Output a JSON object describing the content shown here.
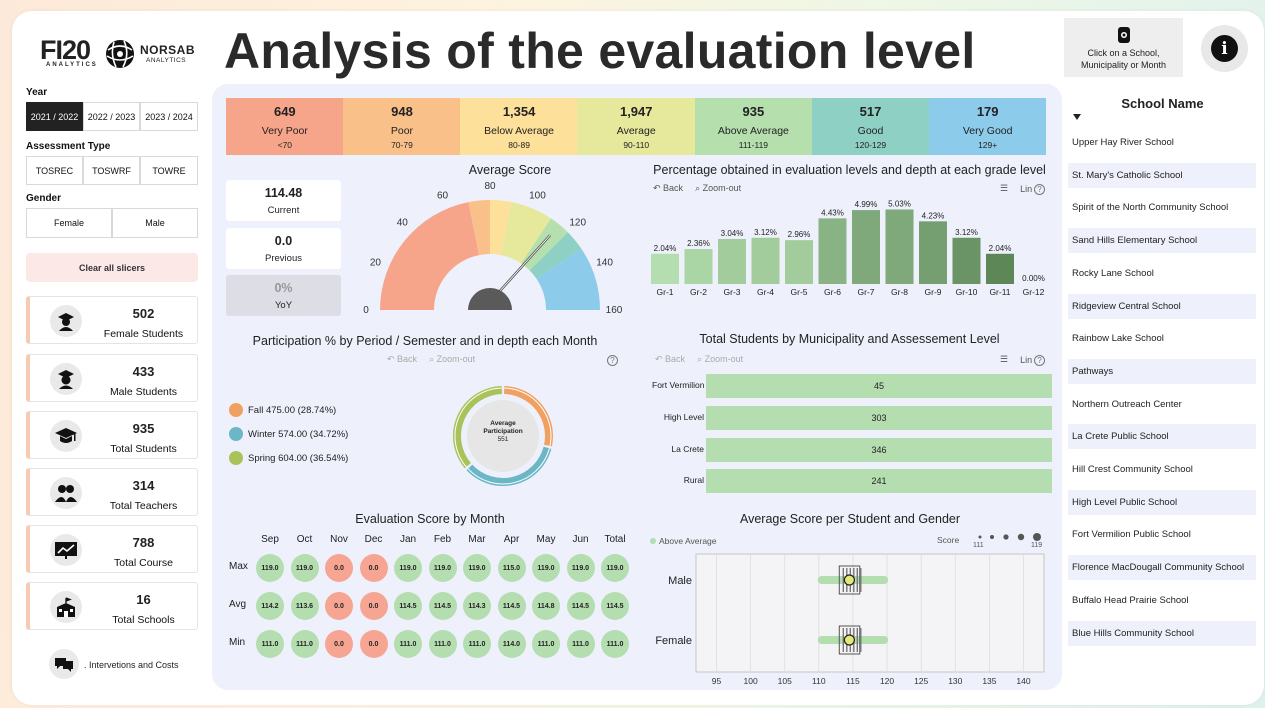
{
  "title": "Analysis of the evaluation level",
  "logos": {
    "fi20_main": "FI20",
    "fi20_sub": "ANALYTICS",
    "norsab_main": "NORSAB",
    "norsab_sub": "ANALYTICS"
  },
  "school_card": {
    "line1": "Click on a School,",
    "line2": "Municipality or Month",
    "icon": "hand-pointer-icon"
  },
  "info_icon": "i",
  "filters": {
    "year": {
      "label": "Year",
      "options": [
        "2021 / 2022",
        "2022 / 2023",
        "2023 / 2024"
      ],
      "selected": "2021 / 2022"
    },
    "assessment_type": {
      "label": "Assessment Type",
      "options": [
        "TOSREC",
        "TOSWRF",
        "TOWRE"
      ]
    },
    "gender": {
      "label": "Gender",
      "options": [
        "Female",
        "Male"
      ]
    },
    "clear": "Clear all slicers"
  },
  "kpis": [
    {
      "value": "502",
      "label": "Female Students",
      "icon": "female-student-icon"
    },
    {
      "value": "433",
      "label": "Male Students",
      "icon": "male-student-icon"
    },
    {
      "value": "935",
      "label": "Total Students",
      "icon": "graduation-cap-icon"
    },
    {
      "value": "314",
      "label": "Total Teachers",
      "icon": "teachers-icon"
    },
    {
      "value": "788",
      "label": "Total Course",
      "icon": "chart-board-icon"
    },
    {
      "value": "16",
      "label": "Total Schools",
      "icon": "school-building-icon"
    }
  ],
  "interventions": {
    "label": ". Intervetions and Costs",
    "icon": "chat-costs-icon"
  },
  "levels": [
    {
      "count": "649",
      "name": "Very Poor",
      "range": "<70",
      "color": "#f7a58a"
    },
    {
      "count": "948",
      "name": "Poor",
      "range": "70-79",
      "color": "#fac08a"
    },
    {
      "count": "1,354",
      "name": "Below Average",
      "range": "80-89",
      "color": "#fde09a"
    },
    {
      "count": "1,947",
      "name": "Average",
      "range": "90-110",
      "color": "#e6e89b"
    },
    {
      "count": "935",
      "name": "Above Average",
      "range": "111-119",
      "color": "#b6dfae"
    },
    {
      "count": "517",
      "name": "Good",
      "range": "120-129",
      "color": "#8fd0c4"
    },
    {
      "count": "179",
      "name": "Very Good",
      "range": "129+",
      "color": "#8ccbea"
    }
  ],
  "average_score": {
    "title": "Average Score",
    "cards": [
      {
        "value": "114.48",
        "label": "Current"
      },
      {
        "value": "0.0",
        "label": "Previous"
      },
      {
        "value": "0%",
        "label": "YoY"
      }
    ],
    "gauge": {
      "min": 0,
      "max": 160,
      "value": 114.48,
      "ticks": [
        "0",
        "20",
        "40",
        "60",
        "80",
        "100",
        "120",
        "140",
        "160"
      ],
      "bands": [
        [
          0,
          70,
          "#f7a58a"
        ],
        [
          70,
          80,
          "#fac08a"
        ],
        [
          80,
          90,
          "#fde09a"
        ],
        [
          90,
          110,
          "#e6e89b"
        ],
        [
          110,
          120,
          "#b6dfae"
        ],
        [
          120,
          130,
          "#8fd0c4"
        ],
        [
          130,
          160,
          "#8ccbea"
        ]
      ]
    }
  },
  "grade_chart": {
    "title": "Percentage obtained in evaluation levels and depth at each grade level",
    "toolbar": {
      "back": "Back",
      "zoom": "Zoom-out",
      "lin": "Lin"
    },
    "chart_data": {
      "type": "bar",
      "categories": [
        "Gr-1",
        "Gr-2",
        "Gr-3",
        "Gr-4",
        "Gr-5",
        "Gr-6",
        "Gr-7",
        "Gr-8",
        "Gr-9",
        "Gr-10",
        "Gr-11",
        "Gr-12"
      ],
      "values": [
        2.04,
        2.36,
        3.04,
        3.12,
        2.96,
        4.43,
        4.99,
        5.03,
        4.23,
        3.12,
        2.04,
        0.0
      ],
      "labels": [
        "2.04%",
        "2.36%",
        "3.04%",
        "3.12%",
        "2.96%",
        "4.43%",
        "4.99%",
        "5.03%",
        "4.23%",
        "3.12%",
        "2.04%",
        "0.00%"
      ],
      "colors": [
        "#b4ddb0",
        "#aad5a4",
        "#a2cc9b",
        "#a2cc9b",
        "#a2cc9b",
        "#89b385",
        "#7fa87b",
        "#7fa87b",
        "#759f70",
        "#6a9465",
        "#5d8757",
        "#5d8757"
      ],
      "ylim": [
        0,
        5.4
      ]
    }
  },
  "participation": {
    "title": "Participation % by Period / Semester and in depth each Month",
    "toolbar": {
      "back": "Back",
      "zoom": "Zoom-out"
    },
    "center_title": "Average Participation",
    "center_value": "551",
    "chart_data": {
      "type": "pie",
      "series": [
        {
          "name": "Fall 475.00 (28.74%)",
          "value": 475.0,
          "pct": 28.74,
          "color": "#f0a060"
        },
        {
          "name": "Winter 574.00 (34.72%)",
          "value": 574.0,
          "pct": 34.72,
          "color": "#6cb7c6"
        },
        {
          "name": "Spring 604.00 (36.54%)",
          "value": 604.0,
          "pct": 36.54,
          "color": "#a9c25a"
        }
      ]
    }
  },
  "municipality": {
    "title": "Total Students by Municipality and Assessement Level",
    "toolbar": {
      "back": "Back",
      "zoom": "Zoom-out",
      "lin": "Lin"
    },
    "chart_data": {
      "type": "bar",
      "categories": [
        "Fort Vermilion",
        "High Level",
        "La Crete",
        "Rural"
      ],
      "values": [
        45,
        303,
        346,
        241
      ]
    }
  },
  "eval_month": {
    "title": "Evaluation Score by Month",
    "months": [
      "Sep",
      "Oct",
      "Nov",
      "Dec",
      "Jan",
      "Feb",
      "Mar",
      "Apr",
      "May",
      "Jun",
      "Total"
    ],
    "rows": [
      {
        "label": "Max",
        "values": [
          "119.0",
          "119.0",
          "0.0",
          "0.0",
          "119.0",
          "119.0",
          "119.0",
          "115.0",
          "119.0",
          "119.0",
          "119.0"
        ]
      },
      {
        "label": "Avg",
        "values": [
          "114.2",
          "113.6",
          "0.0",
          "0.0",
          "114.5",
          "114.5",
          "114.3",
          "114.5",
          "114.8",
          "114.5",
          "114.5"
        ]
      },
      {
        "label": "Min",
        "values": [
          "111.0",
          "111.0",
          "0.0",
          "0.0",
          "111.0",
          "111.0",
          "111.0",
          "114.0",
          "111.0",
          "111.0",
          "111.0"
        ]
      }
    ],
    "colors": {
      "good": "#b4ddb0",
      "zero": "#f6a593"
    }
  },
  "gender_score": {
    "title": "Average Score per Student and Gender",
    "legend": "Above Average",
    "score_label": "Score",
    "score_min": "111",
    "score_max": "119",
    "chart_data": {
      "type": "scatter",
      "categories": [
        "Male",
        "Female"
      ],
      "x_ticks": [
        "95",
        "100",
        "105",
        "110",
        "115",
        "120",
        "125",
        "130",
        "135",
        "140"
      ],
      "xlim": [
        92,
        143
      ],
      "series": [
        {
          "name": "Male",
          "range": [
            111,
            119
          ],
          "box": [
            113,
            116
          ],
          "mean": 114.48
        },
        {
          "name": "Female",
          "range": [
            111,
            119
          ],
          "box": [
            113,
            116
          ],
          "mean": 114.48
        }
      ]
    }
  },
  "schools": {
    "title": "School Name",
    "items": [
      "Upper Hay River School",
      "St. Mary's Catholic School",
      "Spirit of the North Community School",
      "Sand Hills Elementary School",
      "Rocky Lane School",
      "Ridgeview Central School",
      "Rainbow Lake School",
      "Pathways",
      "Northern Outreach Center",
      "La Crete Public School",
      "Hill Crest Community School",
      "High Level Public School",
      "Fort Vermilion Public School",
      "Florence MacDougall Community School",
      "Buffalo Head Prairie School",
      "Blue Hills Community School"
    ]
  }
}
